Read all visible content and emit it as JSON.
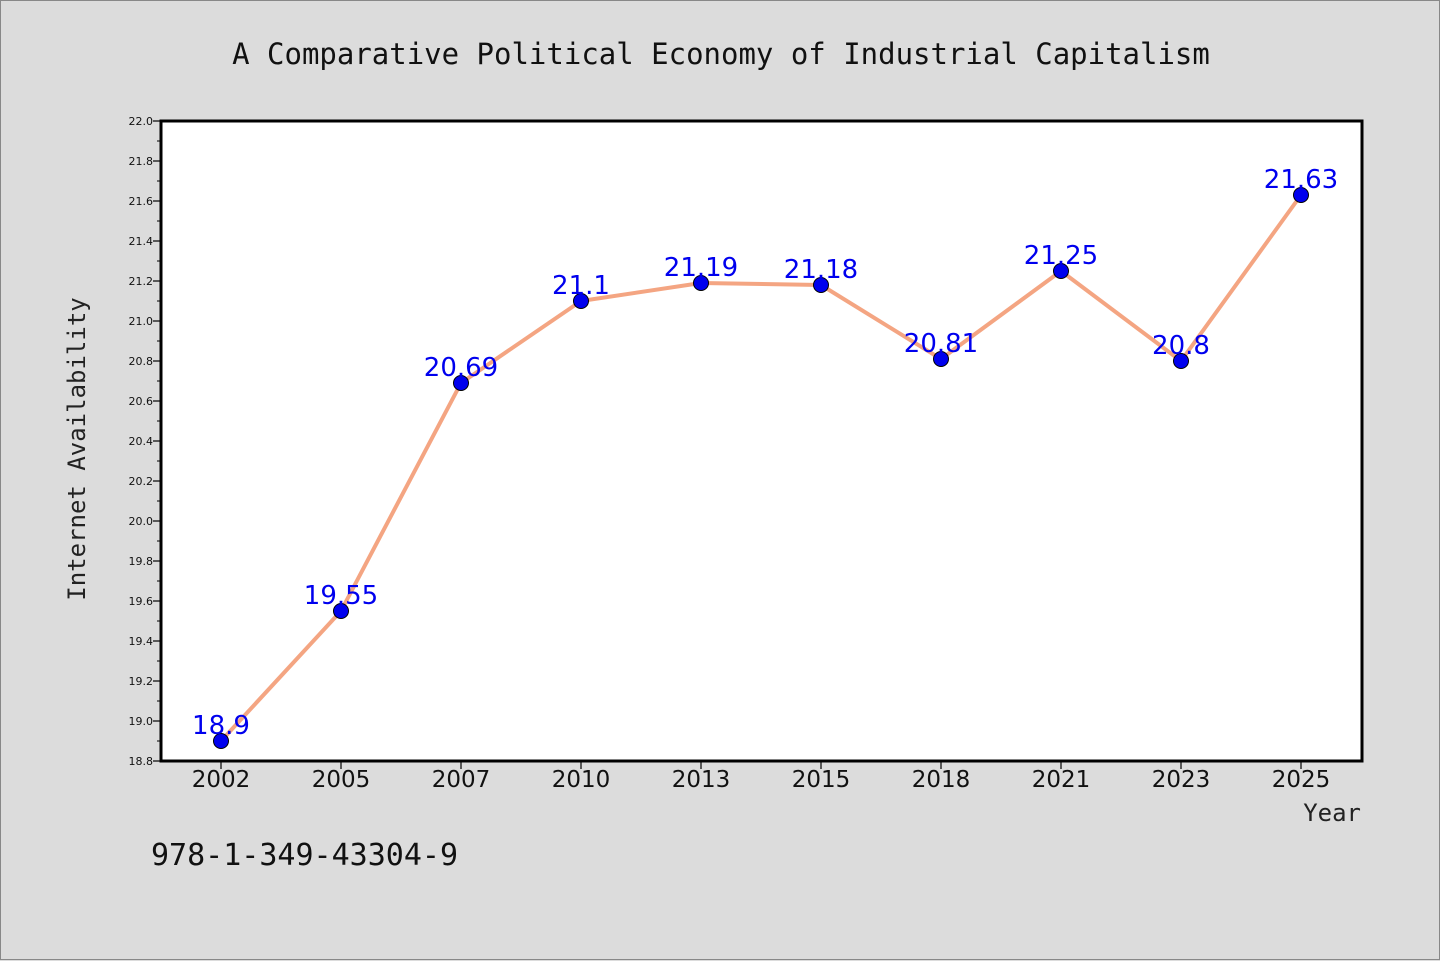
{
  "chart_data": {
    "type": "line",
    "title": "A Comparative Political Economy of Industrial Capitalism",
    "xlabel": "Year",
    "ylabel": "Internet Availability",
    "categories": [
      "2002",
      "2005",
      "2007",
      "2010",
      "2013",
      "2015",
      "2018",
      "2021",
      "2023",
      "2025"
    ],
    "series": [
      {
        "values": [
          18.9,
          19.55,
          20.69,
          21.1,
          21.19,
          21.18,
          20.81,
          21.25,
          20.8,
          21.63
        ],
        "labels": [
          "18.9",
          "19.55",
          "20.69",
          "21.1",
          "21.19",
          "21.18",
          "20.81",
          "21.25",
          "20.8",
          "21.63"
        ]
      }
    ],
    "ylim": [
      18.8,
      22.0
    ],
    "y_ticks": [
      "18.8",
      "19.0",
      "19.2",
      "19.4",
      "19.6",
      "19.8",
      "20.0",
      "20.2",
      "20.4",
      "20.6",
      "20.8",
      "21.0",
      "21.2",
      "21.4",
      "21.6",
      "21.8",
      "22.0"
    ],
    "grid": false,
    "line_color": "#f4a582",
    "marker_color": "#0000ee",
    "label_color": "#0000ee",
    "background_color": "#dcdcdc",
    "plot_background_color": "#ffffff"
  },
  "footer": {
    "code": "978-1-349-43304-9"
  }
}
